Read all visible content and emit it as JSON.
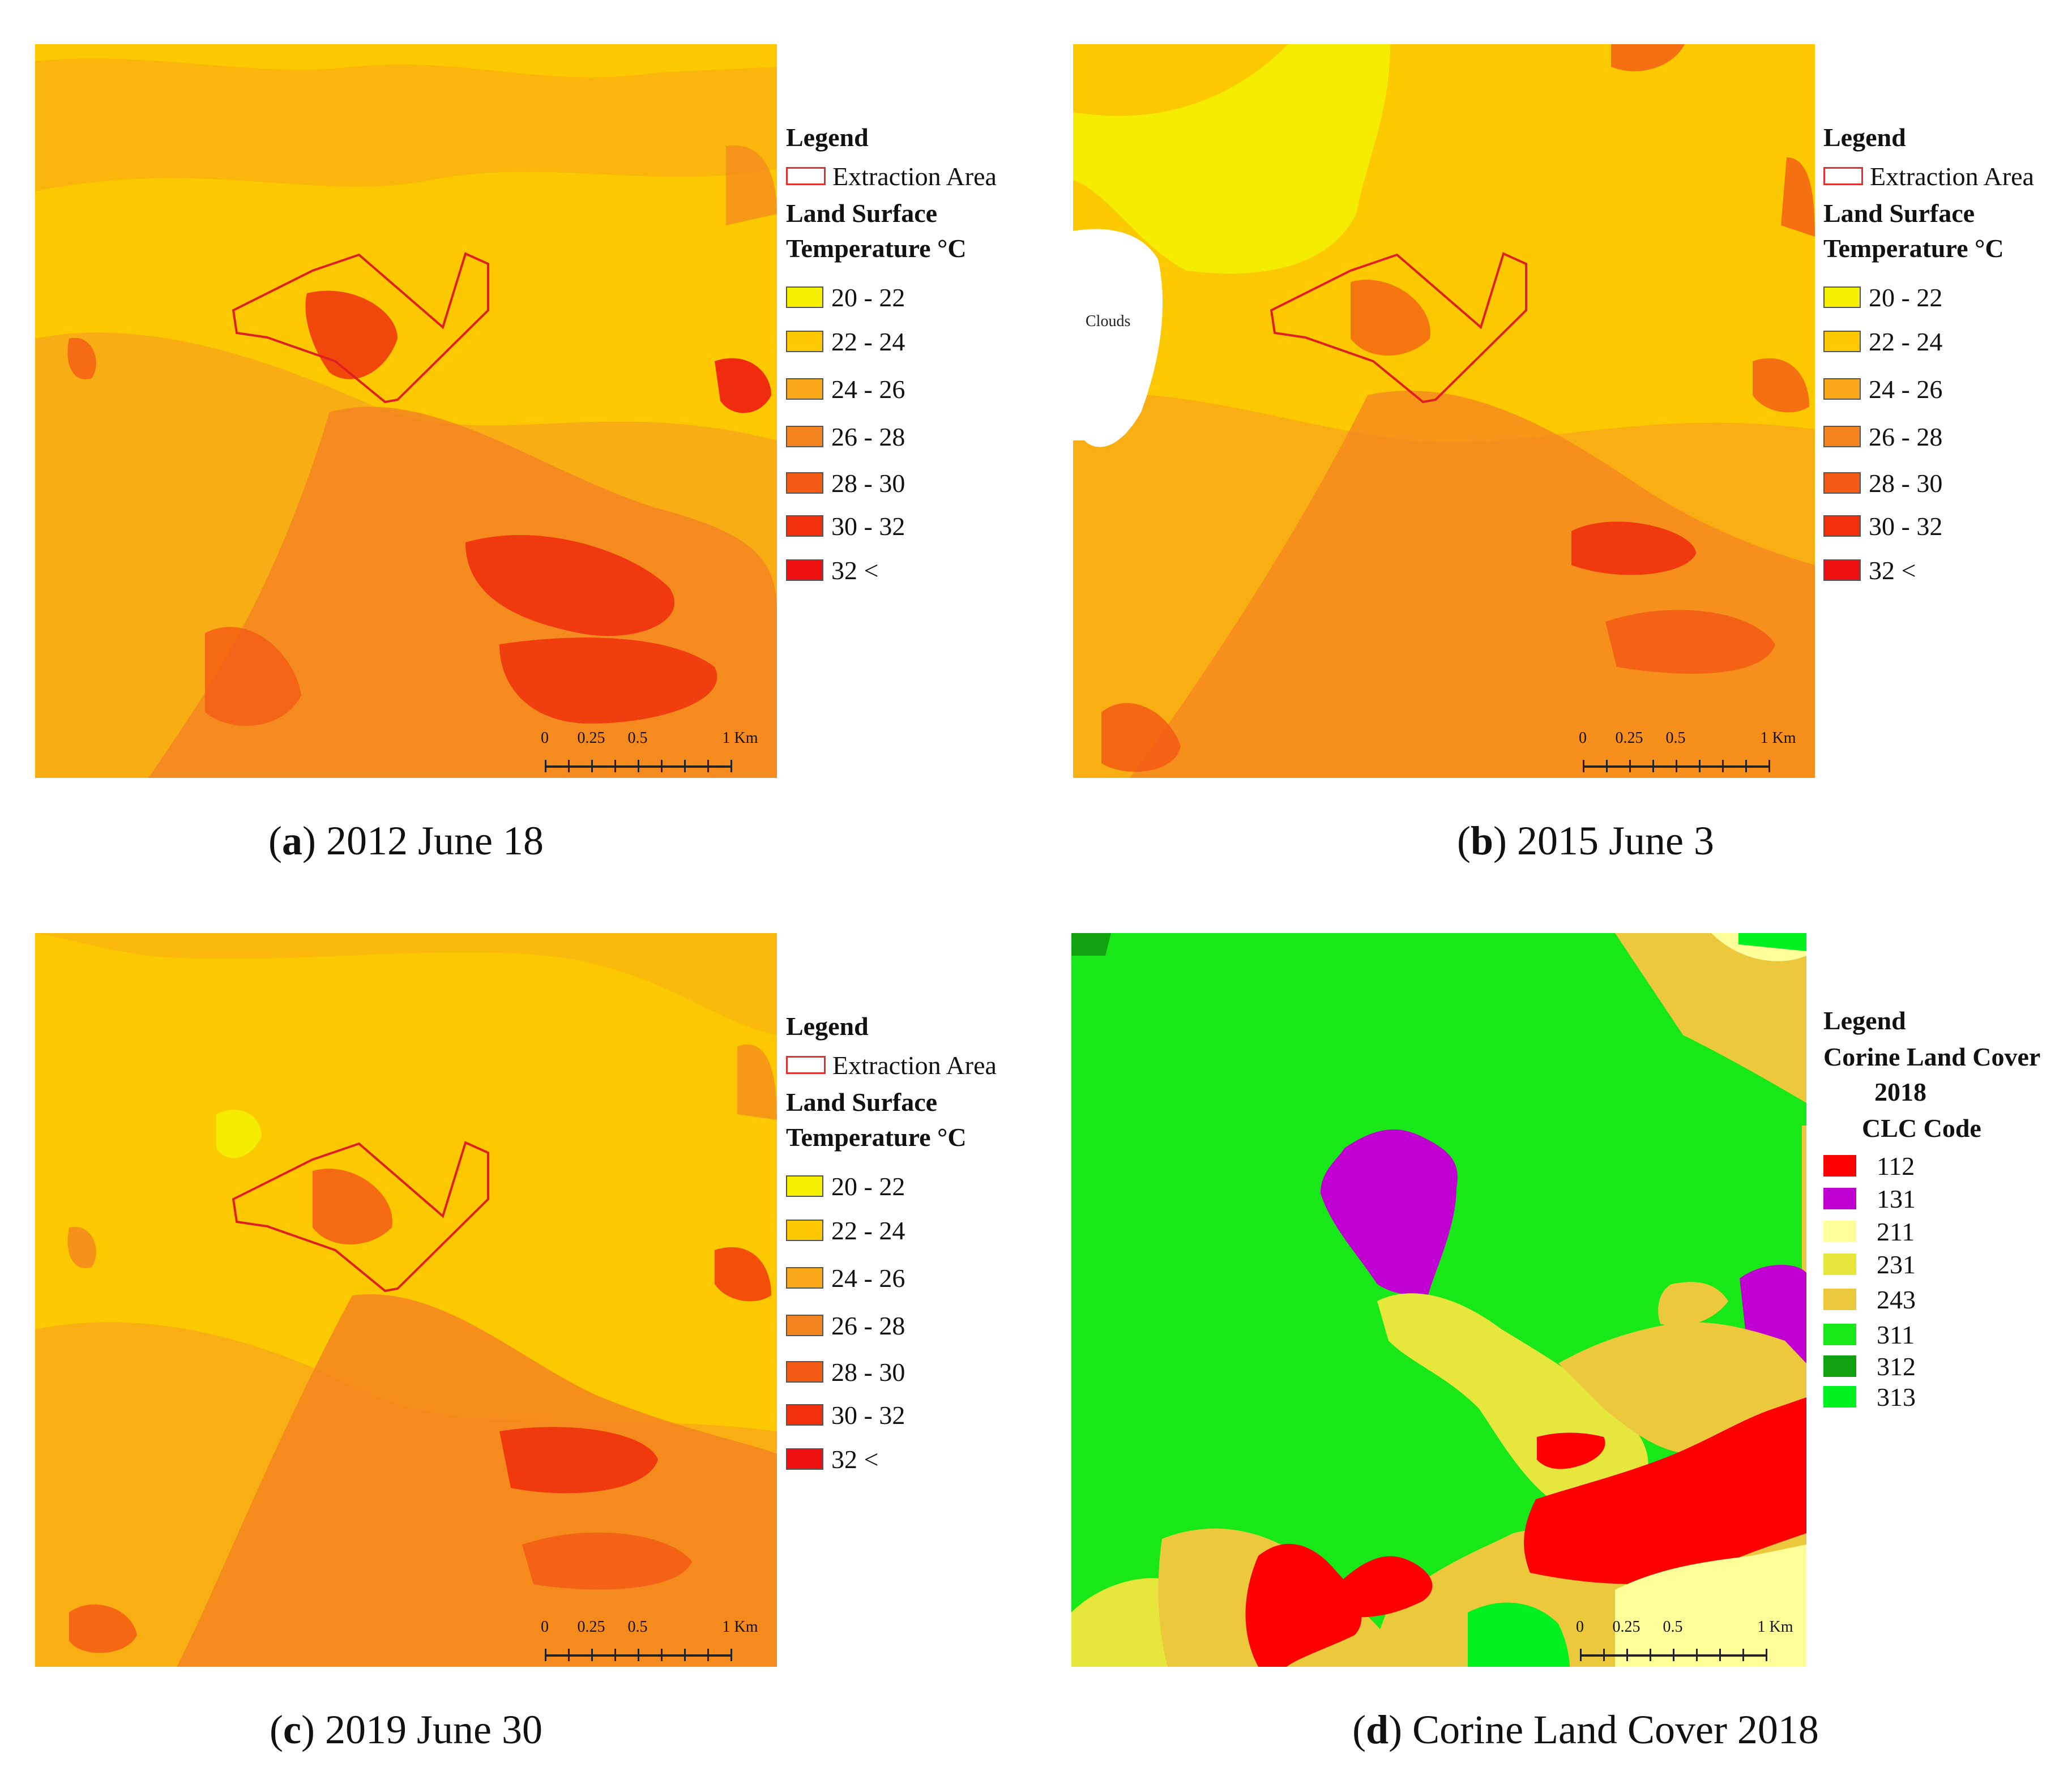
{
  "panels": [
    {
      "id": "a",
      "caption_letter": "a",
      "caption_text": "2012 June 18",
      "legend": {
        "title": "Legend",
        "extraction_label": "Extraction Area",
        "subtitle_line1": "Land Surface",
        "subtitle_line2": "Temperature °C",
        "classes": [
          {
            "label": "20 - 22",
            "color": "#f5f000"
          },
          {
            "label": "22 - 24",
            "color": "#fcc800"
          },
          {
            "label": "24 - 26",
            "color": "#f8a818"
          },
          {
            "label": "26 - 28",
            "color": "#f48420"
          },
          {
            "label": "28 - 30",
            "color": "#f35a14"
          },
          {
            "label": "30 - 32",
            "color": "#f0300c"
          },
          {
            "label": "32 <",
            "color": "#ee1010"
          }
        ]
      },
      "scale": {
        "ticks": [
          "0",
          "0.25",
          "0.5",
          "1 Km"
        ]
      }
    },
    {
      "id": "b",
      "caption_letter": "b",
      "caption_text": "2015 June 3",
      "clouds_label": "Clouds",
      "legend": {
        "title": "Legend",
        "extraction_label": "Extraction Area",
        "subtitle_line1": "Land Surface",
        "subtitle_line2": "Temperature °C",
        "classes": [
          {
            "label": "20 - 22",
            "color": "#f5f000"
          },
          {
            "label": "22 - 24",
            "color": "#fcc800"
          },
          {
            "label": "24 - 26",
            "color": "#f8a818"
          },
          {
            "label": "26 - 28",
            "color": "#f48420"
          },
          {
            "label": "28 - 30",
            "color": "#f35a14"
          },
          {
            "label": "30 - 32",
            "color": "#f0300c"
          },
          {
            "label": "32 <",
            "color": "#ee1010"
          }
        ]
      },
      "scale": {
        "ticks": [
          "0",
          "0.25",
          "0.5",
          "1 Km"
        ]
      }
    },
    {
      "id": "c",
      "caption_letter": "c",
      "caption_text": "2019 June 30",
      "legend": {
        "title": "Legend",
        "extraction_label": "Extraction Area",
        "subtitle_line1": "Land Surface",
        "subtitle_line2": "Temperature °C",
        "classes": [
          {
            "label": "20 - 22",
            "color": "#f5f000"
          },
          {
            "label": "22 - 24",
            "color": "#fcc800"
          },
          {
            "label": "24 - 26",
            "color": "#f8a818"
          },
          {
            "label": "26 - 28",
            "color": "#f48420"
          },
          {
            "label": "28 - 30",
            "color": "#f35a14"
          },
          {
            "label": "30 - 32",
            "color": "#f0300c"
          },
          {
            "label": "32 <",
            "color": "#ee1010"
          }
        ]
      },
      "scale": {
        "ticks": [
          "0",
          "0.25",
          "0.5",
          "1 Km"
        ]
      }
    },
    {
      "id": "d",
      "caption_letter": "d",
      "caption_text": "Corine Land Cover 2018",
      "legend": {
        "title": "Legend",
        "subtitle_line1": "Corine Land Cover",
        "subtitle_line2": "2018",
        "subtitle_line3": "CLC Code",
        "classes": [
          {
            "label": "112",
            "color": "#ff0000"
          },
          {
            "label": "131",
            "color": "#c000d0"
          },
          {
            "label": "211",
            "color": "#ffff9a"
          },
          {
            "label": "231",
            "color": "#e6e63c"
          },
          {
            "label": "243",
            "color": "#ecc83c"
          },
          {
            "label": "311",
            "color": "#18e818"
          },
          {
            "label": "312",
            "color": "#10a010"
          },
          {
            "label": "313",
            "color": "#00f020"
          }
        ]
      },
      "scale": {
        "ticks": [
          "0",
          "0.25",
          "0.5",
          "1 Km"
        ]
      }
    }
  ]
}
